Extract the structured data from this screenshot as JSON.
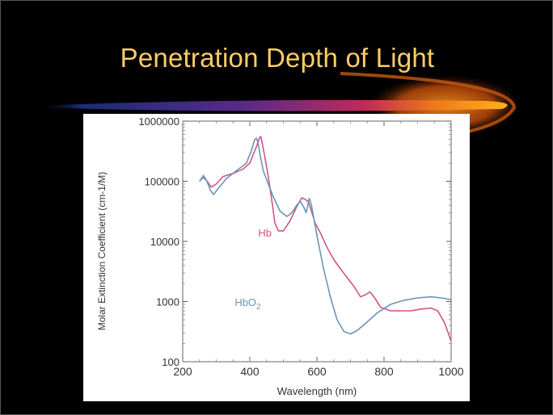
{
  "slide": {
    "title": "Penetration Depth of Light",
    "title_color": "#FFCC66",
    "background": "#000000"
  },
  "chart_data": {
    "type": "line",
    "title": "",
    "xlabel": "Wavelength (nm)",
    "ylabel": "Molar Extinction Coefficient (cm-1/M)",
    "xlim": [
      200,
      1000
    ],
    "ylim": [
      100,
      1000000
    ],
    "yscale": "log",
    "grid": false,
    "x_ticks": [
      "200",
      "400",
      "600",
      "800",
      "1000"
    ],
    "y_ticks": [
      "100",
      "1000",
      "10000",
      "100000",
      "1000000"
    ],
    "series": [
      {
        "name": "Hb",
        "color": "#D2557E",
        "label_at": [
          425,
          12000
        ],
        "points": [
          [
            250,
            100000
          ],
          [
            260,
            115000
          ],
          [
            270,
            105000
          ],
          [
            285,
            80000
          ],
          [
            300,
            90000
          ],
          [
            320,
            120000
          ],
          [
            350,
            135000
          ],
          [
            380,
            160000
          ],
          [
            400,
            200000
          ],
          [
            410,
            280000
          ],
          [
            420,
            380000
          ],
          [
            430,
            540000
          ],
          [
            433,
            550000
          ],
          [
            438,
            400000
          ],
          [
            445,
            250000
          ],
          [
            455,
            120000
          ],
          [
            465,
            50000
          ],
          [
            475,
            20000
          ],
          [
            485,
            15000
          ],
          [
            500,
            15000
          ],
          [
            520,
            22000
          ],
          [
            540,
            38000
          ],
          [
            555,
            53000
          ],
          [
            565,
            50000
          ],
          [
            575,
            45000
          ],
          [
            585,
            30000
          ],
          [
            595,
            20000
          ],
          [
            610,
            14000
          ],
          [
            630,
            8000
          ],
          [
            650,
            5000
          ],
          [
            670,
            3500
          ],
          [
            690,
            2500
          ],
          [
            710,
            1800
          ],
          [
            730,
            1200
          ],
          [
            745,
            1300
          ],
          [
            758,
            1450
          ],
          [
            770,
            1200
          ],
          [
            790,
            800
          ],
          [
            820,
            700
          ],
          [
            850,
            700
          ],
          [
            880,
            700
          ],
          [
            910,
            750
          ],
          [
            940,
            780
          ],
          [
            960,
            700
          ],
          [
            980,
            450
          ],
          [
            1000,
            220
          ]
        ]
      },
      {
        "name": "HbO2",
        "color": "#6A94B8",
        "label_at": [
          355,
          850
        ],
        "points": [
          [
            250,
            100000
          ],
          [
            262,
            125000
          ],
          [
            272,
            100000
          ],
          [
            283,
            70000
          ],
          [
            292,
            60000
          ],
          [
            305,
            75000
          ],
          [
            330,
            110000
          ],
          [
            360,
            150000
          ],
          [
            390,
            200000
          ],
          [
            405,
            330000
          ],
          [
            415,
            500000
          ],
          [
            420,
            520000
          ],
          [
            425,
            420000
          ],
          [
            432,
            250000
          ],
          [
            440,
            150000
          ],
          [
            455,
            90000
          ],
          [
            470,
            55000
          ],
          [
            490,
            32000
          ],
          [
            510,
            26000
          ],
          [
            525,
            30000
          ],
          [
            540,
            40000
          ],
          [
            550,
            46000
          ],
          [
            560,
            38000
          ],
          [
            568,
            30000
          ],
          [
            577,
            52000
          ],
          [
            583,
            42000
          ],
          [
            592,
            22000
          ],
          [
            605,
            9000
          ],
          [
            620,
            3500
          ],
          [
            640,
            1200
          ],
          [
            660,
            500
          ],
          [
            680,
            320
          ],
          [
            700,
            290
          ],
          [
            720,
            330
          ],
          [
            750,
            460
          ],
          [
            780,
            650
          ],
          [
            820,
            900
          ],
          [
            860,
            1050
          ],
          [
            900,
            1150
          ],
          [
            940,
            1200
          ],
          [
            970,
            1150
          ],
          [
            1000,
            1080
          ]
        ]
      }
    ]
  }
}
